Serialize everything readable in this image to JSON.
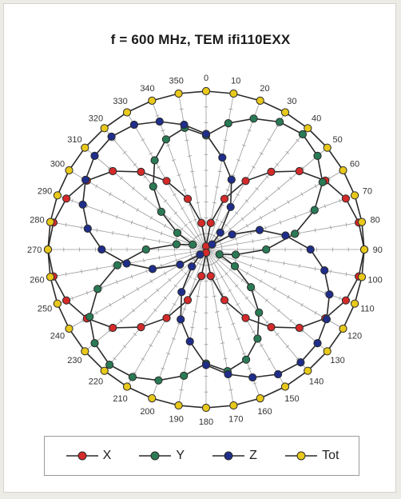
{
  "chart_data": {
    "type": "polar-line",
    "title": "f = 600 MHz, TEM  ifi110EXX",
    "angle_labels": [
      "0",
      "10",
      "20",
      "30",
      "40",
      "50",
      "60",
      "70",
      "80",
      "90",
      "100",
      "110",
      "120",
      "130",
      "140",
      "150",
      "160",
      "170",
      "180",
      "190",
      "200",
      "210",
      "220",
      "230",
      "240",
      "250",
      "260",
      "270",
      "280",
      "290",
      "300",
      "310",
      "320",
      "330",
      "340",
      "350"
    ],
    "angle_unit": "degrees",
    "direction": "clockwise",
    "zero_position": "top",
    "radial_range": [
      0,
      1
    ],
    "radial_tick_labels": "none",
    "grid": true,
    "legend_position": "bottom",
    "series": [
      {
        "name": "X",
        "color": "#d42a2a",
        "theta": [
          0,
          10,
          20,
          30,
          40,
          50,
          60,
          70,
          80,
          90,
          100,
          110,
          120,
          130,
          140,
          150,
          160,
          170,
          180,
          190,
          200,
          210,
          220,
          230,
          240,
          250,
          260,
          270,
          280,
          290,
          300,
          310,
          320,
          330,
          340,
          350
        ],
        "r": [
          0.02,
          0.17,
          0.34,
          0.5,
          0.64,
          0.77,
          0.87,
          0.94,
          0.98,
          1.0,
          0.98,
          0.94,
          0.87,
          0.77,
          0.64,
          0.5,
          0.34,
          0.17,
          0.02,
          0.17,
          0.34,
          0.5,
          0.64,
          0.77,
          0.87,
          0.94,
          0.98,
          1.0,
          0.98,
          0.94,
          0.87,
          0.77,
          0.64,
          0.5,
          0.34,
          0.17
        ]
      },
      {
        "name": "Y",
        "color": "#2a7a55",
        "theta": [
          0,
          10,
          20,
          30,
          40,
          50,
          60,
          70,
          80,
          90,
          100,
          110,
          120,
          130,
          140,
          150,
          160,
          170,
          180,
          190,
          200,
          210,
          220,
          230,
          240,
          250,
          260,
          270,
          280,
          290,
          300,
          310,
          320,
          330,
          340,
          350
        ],
        "r": [
          0.72,
          0.81,
          0.88,
          0.93,
          0.95,
          0.92,
          0.85,
          0.73,
          0.57,
          0.38,
          0.19,
          0.09,
          0.21,
          0.37,
          0.52,
          0.65,
          0.74,
          0.78,
          0.72,
          0.81,
          0.88,
          0.93,
          0.95,
          0.92,
          0.85,
          0.73,
          0.57,
          0.38,
          0.19,
          0.09,
          0.21,
          0.37,
          0.52,
          0.65,
          0.74,
          0.78
        ]
      },
      {
        "name": "Z",
        "color": "#1f2e8a",
        "theta": [
          0,
          10,
          20,
          30,
          40,
          50,
          60,
          70,
          80,
          90,
          100,
          110,
          120,
          130,
          140,
          150,
          160,
          170,
          180,
          190,
          200,
          210,
          220,
          230,
          240,
          250,
          260,
          270,
          280,
          290,
          300,
          310,
          320,
          330,
          340,
          350
        ],
        "r": [
          0.73,
          0.59,
          0.47,
          0.31,
          0.14,
          0.05,
          0.19,
          0.36,
          0.51,
          0.66,
          0.76,
          0.83,
          0.88,
          0.92,
          0.93,
          0.91,
          0.86,
          0.8,
          0.73,
          0.59,
          0.47,
          0.31,
          0.14,
          0.05,
          0.19,
          0.36,
          0.51,
          0.66,
          0.76,
          0.83,
          0.88,
          0.92,
          0.93,
          0.91,
          0.86,
          0.8
        ]
      },
      {
        "name": "Tot",
        "color": "#e8c81a",
        "theta": [
          0,
          10,
          20,
          30,
          40,
          50,
          60,
          70,
          80,
          90,
          100,
          110,
          120,
          130,
          140,
          150,
          160,
          170,
          180,
          190,
          200,
          210,
          220,
          230,
          240,
          250,
          260,
          270,
          280,
          290,
          300,
          310,
          320,
          330,
          340,
          350
        ],
        "r": [
          1.0,
          1.0,
          1.0,
          1.0,
          1.0,
          1.0,
          1.0,
          1.0,
          1.0,
          1.0,
          1.0,
          1.0,
          1.0,
          1.0,
          1.0,
          1.0,
          1.0,
          1.0,
          1.0,
          1.0,
          1.0,
          1.0,
          1.0,
          1.0,
          1.0,
          1.0,
          1.0,
          1.0,
          1.0,
          1.0,
          1.0,
          1.0,
          1.0,
          1.0,
          1.0,
          1.0
        ]
      }
    ]
  }
}
